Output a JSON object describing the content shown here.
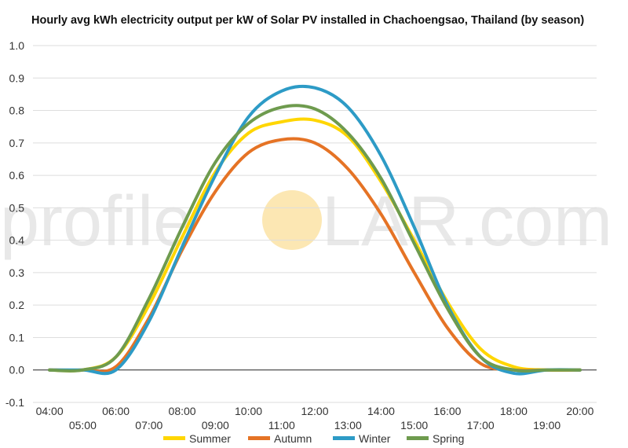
{
  "chart_data": {
    "type": "line",
    "title": "Hourly avg kWh electricity output per kW of Solar PV installed in Chachoengsao, Thailand (by season)",
    "xlabel": "",
    "ylabel": "",
    "x_ticks_upper": [
      "04:00",
      "06:00",
      "08:00",
      "10:00",
      "12:00",
      "14:00",
      "16:00",
      "18:00",
      "20:00"
    ],
    "x_ticks_lower": [
      "05:00",
      "07:00",
      "09:00",
      "11:00",
      "13:00",
      "15:00",
      "17:00",
      "19:00"
    ],
    "y_ticks": [
      "-0.1",
      "0.0",
      "0.1",
      "0.2",
      "0.3",
      "0.4",
      "0.5",
      "0.6",
      "0.7",
      "0.8",
      "0.9",
      "1.0"
    ],
    "ylim": [
      -0.1,
      1.0
    ],
    "grid": true,
    "legend_position": "bottom",
    "x": [
      4,
      5,
      6,
      7,
      8,
      9,
      10,
      11,
      12,
      13,
      14,
      15,
      16,
      17,
      18,
      19,
      20
    ],
    "series": [
      {
        "name": "Summer",
        "color": "#FFD600",
        "values": [
          0.0,
          0.0,
          0.04,
          0.2,
          0.41,
          0.61,
          0.73,
          0.765,
          0.77,
          0.72,
          0.58,
          0.4,
          0.21,
          0.065,
          0.01,
          0.0,
          0.0
        ]
      },
      {
        "name": "Autumn",
        "color": "#E57325",
        "values": [
          0.0,
          0.0,
          0.01,
          0.16,
          0.37,
          0.55,
          0.67,
          0.71,
          0.7,
          0.62,
          0.48,
          0.3,
          0.13,
          0.02,
          0.0,
          0.0,
          0.0
        ]
      },
      {
        "name": "Winter",
        "color": "#2D9BC6",
        "values": [
          0.0,
          0.0,
          0.0,
          0.15,
          0.38,
          0.6,
          0.78,
          0.86,
          0.87,
          0.81,
          0.66,
          0.44,
          0.2,
          0.04,
          -0.01,
          0.0,
          0.0
        ]
      },
      {
        "name": "Spring",
        "color": "#6E9B4E",
        "values": [
          0.0,
          0.0,
          0.04,
          0.22,
          0.44,
          0.64,
          0.76,
          0.81,
          0.805,
          0.73,
          0.59,
          0.39,
          0.19,
          0.04,
          0.0,
          0.0,
          0.0
        ]
      }
    ]
  },
  "watermark": {
    "left_text": "profile",
    "right_text": "LAR.com",
    "sun_color": "#FCE7B3"
  }
}
